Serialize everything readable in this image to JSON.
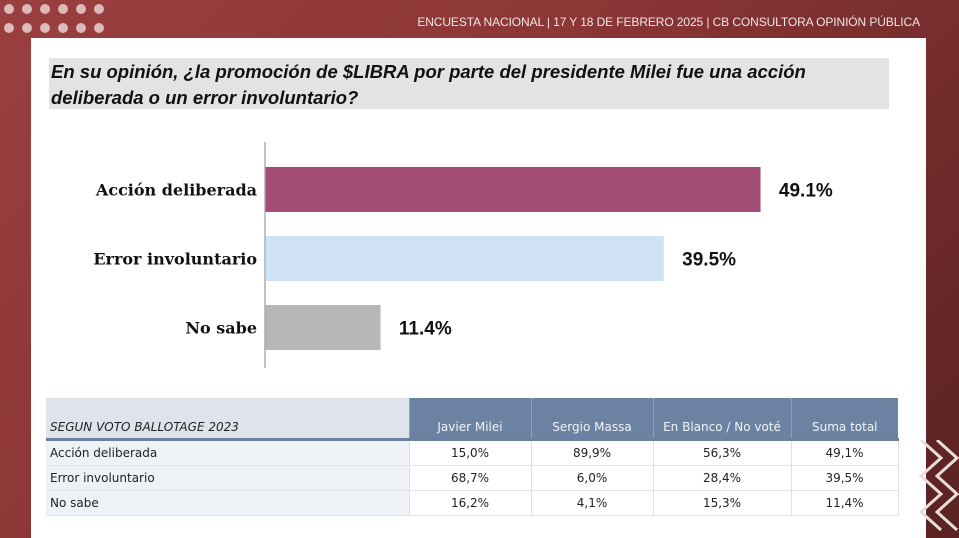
{
  "header": {
    "text": "ENCUESTA NACIONAL  | 17 Y 18 DE FEBRERO 2025 | CB CONSULTORA OPINIÓN PÚBLICA"
  },
  "question": {
    "text": "En su opinión, ¿la promoción de $LIBRA por parte del presidente Milei fue una acción deliberada o un error involuntario?"
  },
  "colors": {
    "accion": "#a34d76",
    "error": "#cfe2f3",
    "nosabe": "#b7b7b7",
    "table_header": "#6b82a3",
    "brand": "#8c3636"
  },
  "chart_data": {
    "type": "bar",
    "orientation": "horizontal",
    "title": "En su opinión, ¿la promoción de $LIBRA por parte del presidente Milei fue una acción deliberada o un error involuntario?",
    "categories": [
      "Acción deliberada",
      "Error involuntario",
      "No sabe"
    ],
    "values": [
      49.1,
      39.5,
      11.4
    ],
    "value_labels": [
      "49.1%",
      "39.5%",
      "11.4%"
    ],
    "unit": "%",
    "xlabel": "",
    "ylabel": "",
    "xlim": [
      0,
      50
    ],
    "grid": false,
    "legend": "none"
  },
  "table": {
    "title": "SEGUN VOTO BALLOTAGE 2023",
    "columns": [
      "Javier Milei",
      "Sergio Massa",
      "En Blanco / No voté",
      "Suma total"
    ],
    "rows": [
      {
        "label": "Acción deliberada",
        "values": [
          "15,0%",
          "89,9%",
          "56,3%",
          "49,1%"
        ]
      },
      {
        "label": "Error involuntario",
        "values": [
          "68,7%",
          "6,0%",
          "28,4%",
          "39,5%"
        ]
      },
      {
        "label": "No sabe",
        "values": [
          "16,2%",
          "4,1%",
          "15,3%",
          "11,4%"
        ]
      }
    ]
  }
}
